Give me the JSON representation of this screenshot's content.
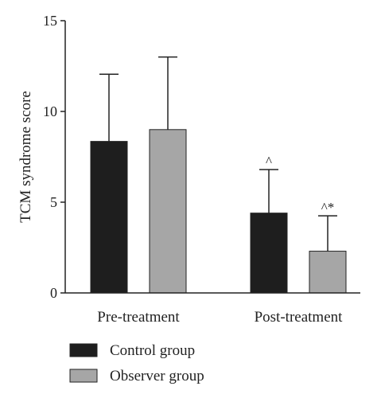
{
  "chart_data": {
    "type": "bar",
    "title": "",
    "xlabel": "",
    "ylabel": "TCM syndrome score",
    "ylim": [
      0,
      15
    ],
    "yticks": [
      0,
      5,
      10,
      15
    ],
    "grid": false,
    "legend_position": "bottom-left",
    "categories": [
      "Pre-treatment",
      "Post-treatment"
    ],
    "series": [
      {
        "name": "Control group",
        "color": "#1e1e1e",
        "values": [
          8.35,
          4.4
        ],
        "error_upper": [
          12.05,
          6.8
        ],
        "annotations": [
          "",
          "^"
        ]
      },
      {
        "name": "Observer group",
        "color": "#a6a6a6",
        "values": [
          9.0,
          2.3
        ],
        "error_upper": [
          13.0,
          4.25
        ],
        "annotations": [
          "",
          "^*"
        ]
      }
    ]
  }
}
